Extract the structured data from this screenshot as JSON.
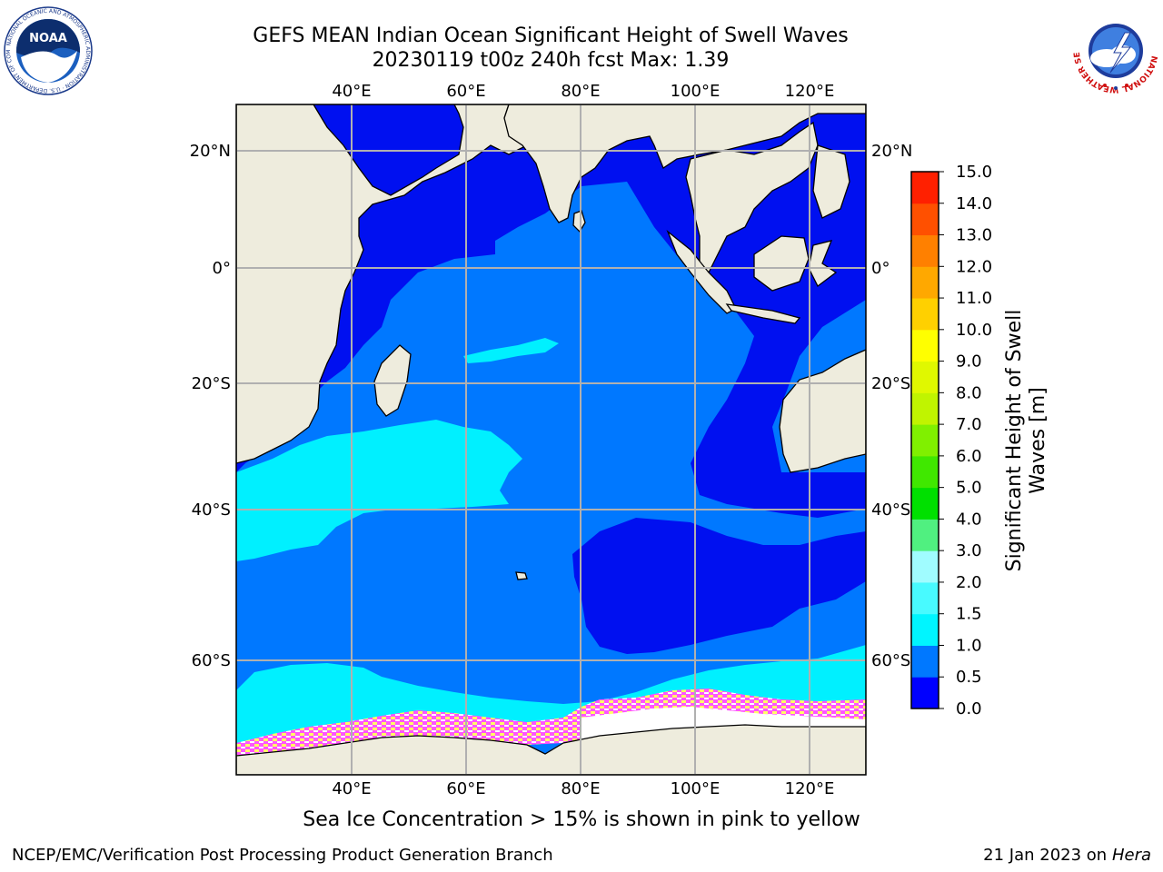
{
  "title": {
    "line1": "GEFS MEAN Indian Ocean Significant Height of Swell Waves",
    "line2": "20230119 t00z 240h fcst   Max: 1.39"
  },
  "map": {
    "lon_labels_top": [
      "40°E",
      "60°E",
      "80°E",
      "100°E",
      "120°E"
    ],
    "lon_labels_bottom": [
      "40°E",
      "60°E",
      "80°E",
      "100°E",
      "120°E"
    ],
    "lat_labels_left": [
      "20°N",
      "0°",
      "20°S",
      "40°S",
      "60°S"
    ],
    "lat_labels_right": [
      "20°N",
      "0°",
      "20°S",
      "40°S",
      "60°S"
    ],
    "colors": {
      "land": "#eeecdd",
      "band_0_0_5": "#0010f0",
      "band_0_5_1_0": "#0078ff",
      "band_1_0_1_5": "#00f0ff",
      "ice_pink": "#ff55ff",
      "ice_yellow": "#ffff66",
      "grid": "#b0b0b0"
    }
  },
  "colorbar": {
    "title": "Significant Height of Swell Waves [m]",
    "title_line1": "Significant Height of Swell",
    "title_line2": "Waves [m]",
    "ticks": [
      "0.0",
      "0.5",
      "1.0",
      "1.5",
      "2.0",
      "3.0",
      "4.0",
      "5.0",
      "6.0",
      "7.0",
      "8.0",
      "9.0",
      "10.0",
      "11.0",
      "12.0",
      "13.0",
      "14.0",
      "15.0"
    ],
    "colors": [
      "#0000ff",
      "#0078ff",
      "#00f5ff",
      "#48faff",
      "#a0fcff",
      "#50f080",
      "#00e000",
      "#40e800",
      "#80f000",
      "#c0f400",
      "#e0f800",
      "#ffff00",
      "#ffd000",
      "#ffa800",
      "#ff8000",
      "#ff5000",
      "#ff2000",
      "#ff0000"
    ]
  },
  "logos": {
    "noaa_text": "NOAA",
    "noaa_ring": "NATIONAL OCEANIC AND ATMOSPHERIC ADMINISTRATION · U.S. DEPARTMENT OF COMMERCE",
    "nws_ring": "NATIONAL WEATHER SERVICE"
  },
  "ice_note": "Sea Ice Concentration > 15% is shown in pink to yellow",
  "footer": {
    "left": "NCEP/EMC/Verification Post Processing Product Generation Branch",
    "right_prefix": "21 Jan 2023 on ",
    "right_host": "Hera"
  }
}
